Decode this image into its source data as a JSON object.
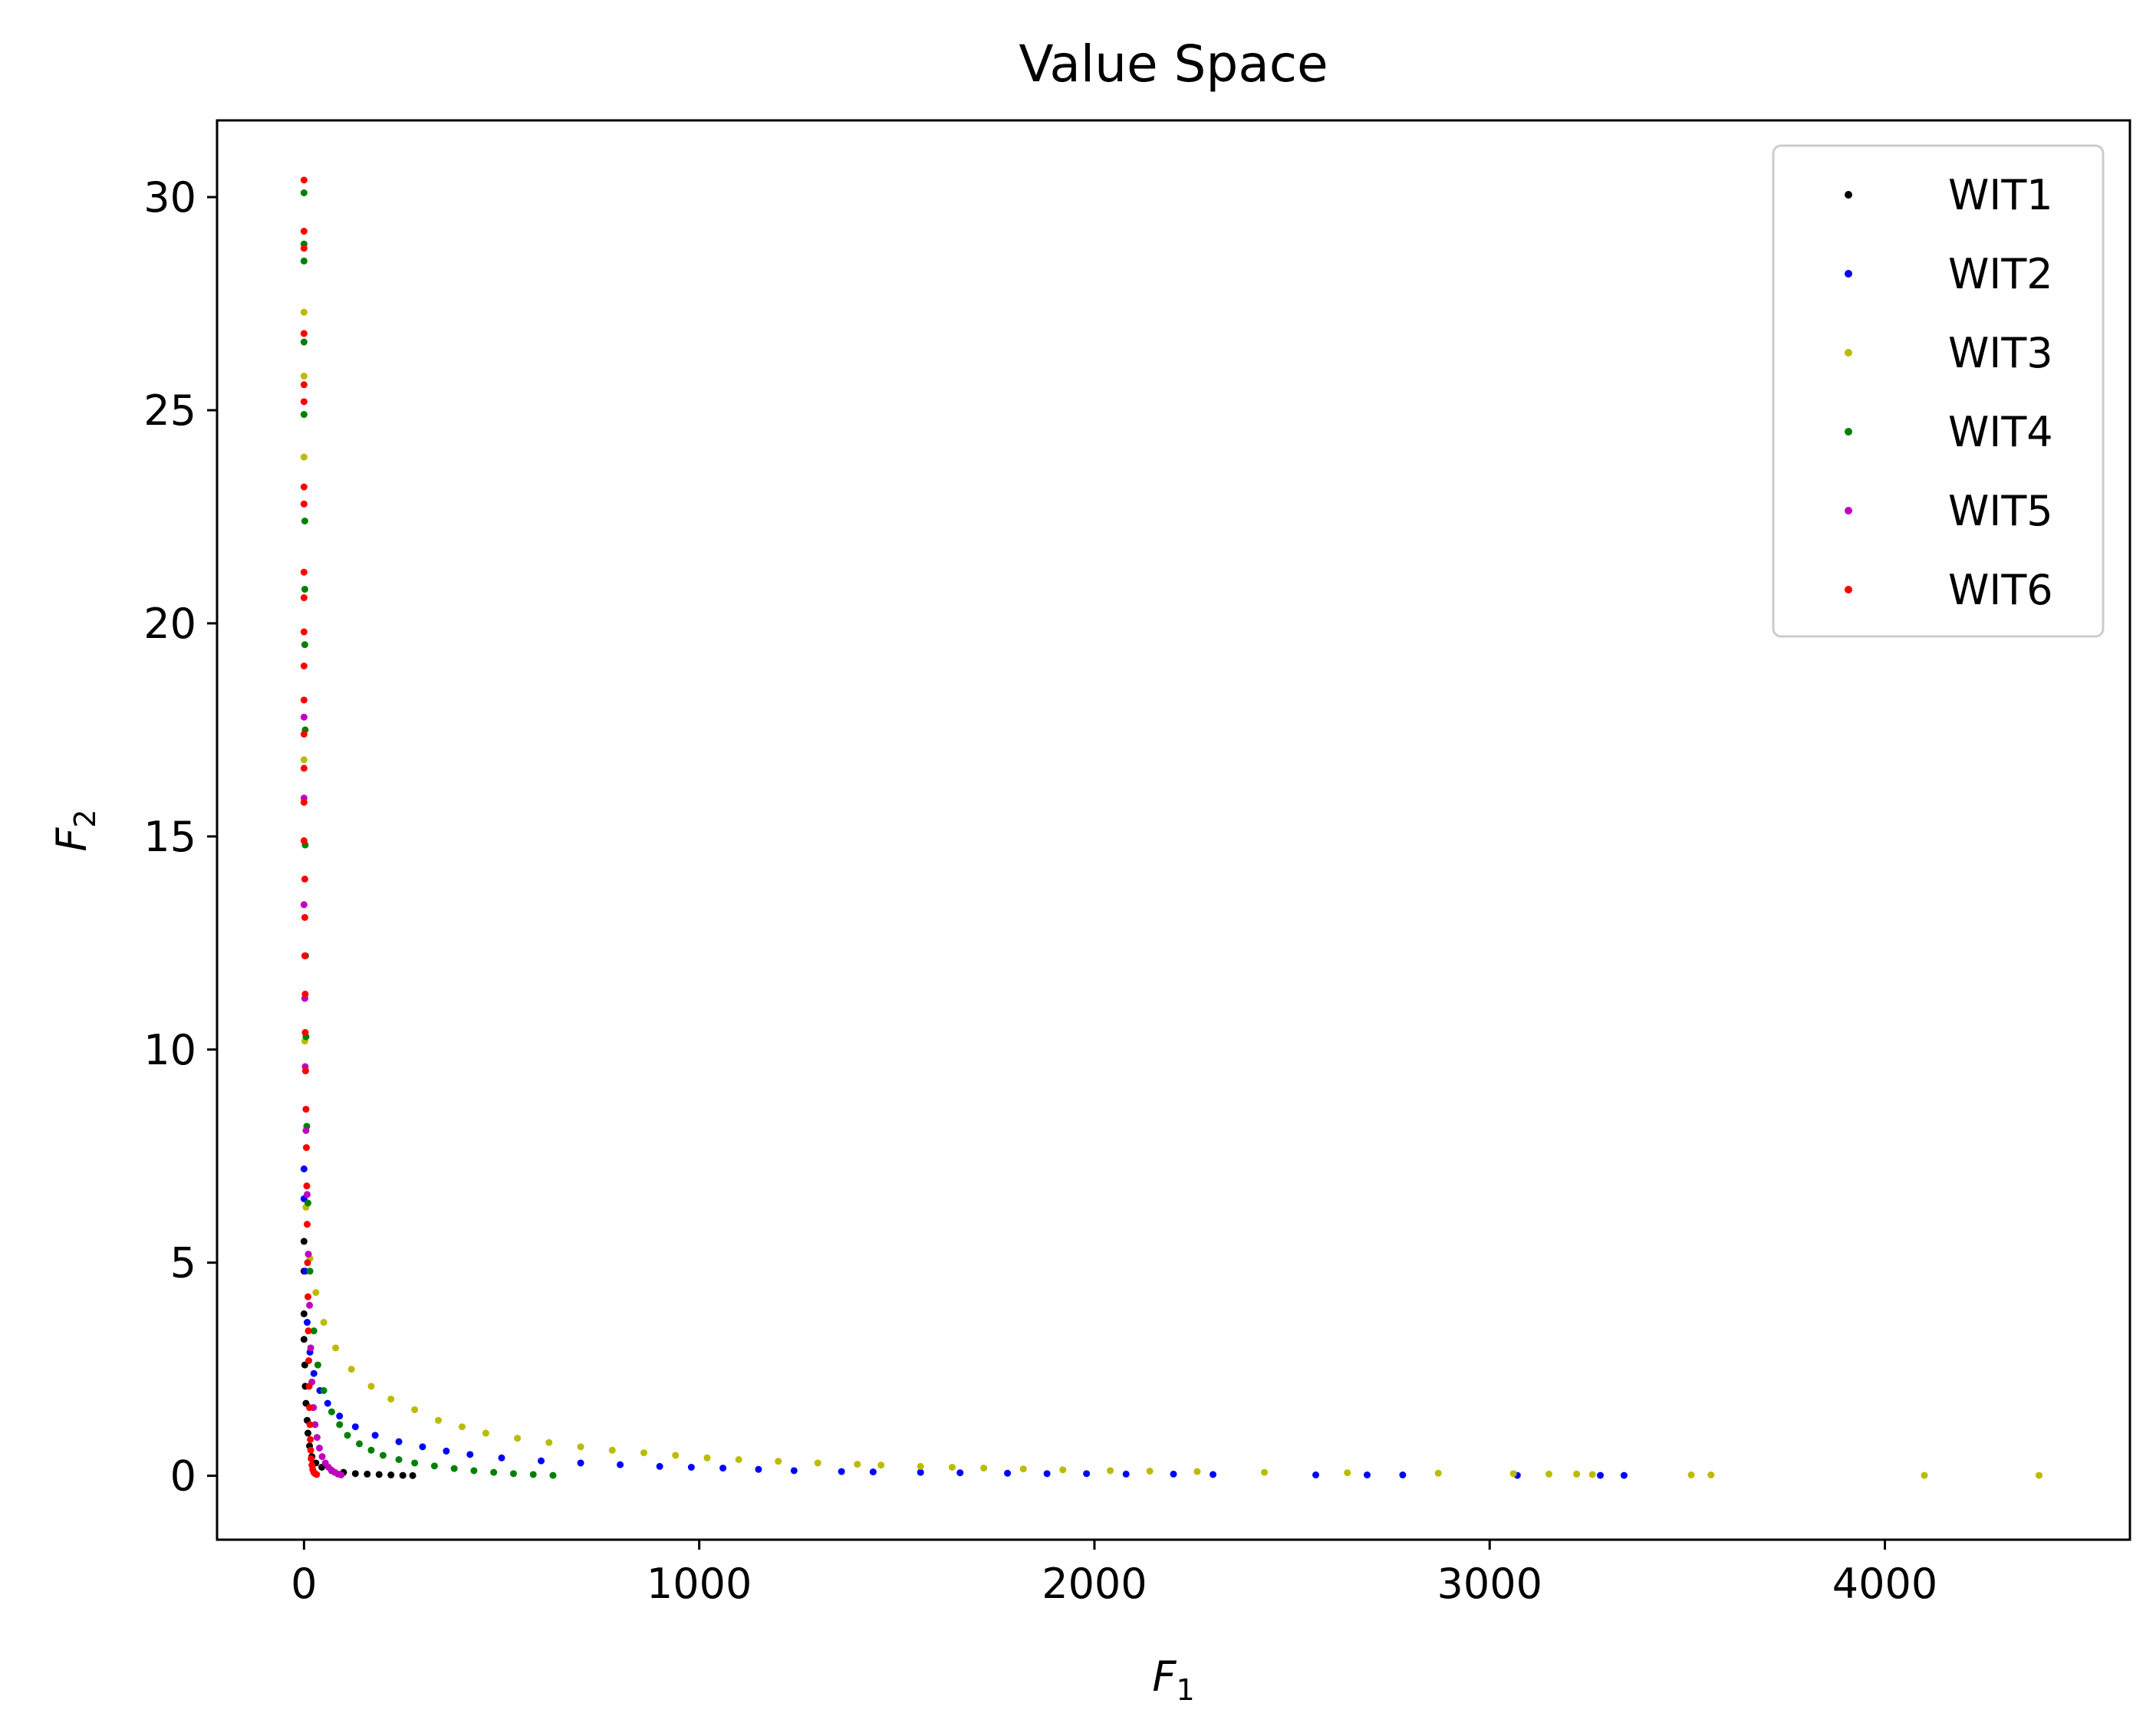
{
  "chart_data": {
    "type": "scatter",
    "title": "Value Space",
    "xlabel": {
      "main": "F",
      "sub": "1"
    },
    "ylabel": {
      "main": "F",
      "sub": "2"
    },
    "xlim": [
      -220,
      4620
    ],
    "ylim": [
      -1.5,
      31.8
    ],
    "x_ticks": [
      0,
      1000,
      2000,
      3000,
      4000
    ],
    "x_tick_labels": [
      "0",
      "1000",
      "2000",
      "3000",
      "4000"
    ],
    "y_ticks": [
      0,
      5,
      10,
      15,
      20,
      25,
      30
    ],
    "y_tick_labels": [
      "0",
      "5",
      "10",
      "15",
      "20",
      "25",
      "30"
    ],
    "grid": false,
    "legend_position": "top-right",
    "series": [
      {
        "name": "WIT1",
        "color": "#000000",
        "points": [
          [
            0,
            5.5
          ],
          [
            0,
            4.8
          ],
          [
            0,
            3.8
          ],
          [
            0,
            3.2
          ],
          [
            2,
            2.6
          ],
          [
            3,
            2.1
          ],
          [
            5,
            1.7
          ],
          [
            8,
            1.3
          ],
          [
            10,
            1.0
          ],
          [
            14,
            0.7
          ],
          [
            20,
            0.45
          ],
          [
            30,
            0.3
          ],
          [
            45,
            0.2
          ],
          [
            70,
            0.12
          ],
          [
            100,
            0.08
          ],
          [
            130,
            0.05
          ],
          [
            160,
            0.04
          ],
          [
            190,
            0.03
          ],
          [
            220,
            0.02
          ],
          [
            250,
            0.01
          ],
          [
            275,
            0.005
          ]
        ]
      },
      {
        "name": "WIT2",
        "color": "#0000ff",
        "points": [
          [
            0,
            7.2
          ],
          [
            0,
            6.5
          ],
          [
            3,
            4.8
          ],
          [
            8,
            3.6
          ],
          [
            15,
            2.9
          ],
          [
            25,
            2.4
          ],
          [
            40,
            2.0
          ],
          [
            60,
            1.7
          ],
          [
            90,
            1.4
          ],
          [
            130,
            1.15
          ],
          [
            180,
            0.95
          ],
          [
            240,
            0.8
          ],
          [
            300,
            0.68
          ],
          [
            360,
            0.58
          ],
          [
            420,
            0.5
          ],
          [
            500,
            0.42
          ],
          [
            600,
            0.35
          ],
          [
            700,
            0.3
          ],
          [
            800,
            0.26
          ],
          [
            900,
            0.22
          ],
          [
            980,
            0.2
          ],
          [
            1060,
            0.18
          ],
          [
            1150,
            0.15
          ],
          [
            1240,
            0.12
          ],
          [
            1360,
            0.1
          ],
          [
            1440,
            0.09
          ],
          [
            1560,
            0.08
          ],
          [
            1660,
            0.07
          ],
          [
            1780,
            0.06
          ],
          [
            1880,
            0.05
          ],
          [
            1980,
            0.05
          ],
          [
            2080,
            0.04
          ],
          [
            2200,
            0.04
          ],
          [
            2300,
            0.03
          ],
          [
            2560,
            0.02
          ],
          [
            2690,
            0.02
          ],
          [
            2780,
            0.02
          ],
          [
            3070,
            0.01
          ],
          [
            3280,
            0.01
          ],
          [
            3340,
            0.01
          ]
        ]
      },
      {
        "name": "WIT3",
        "color": "#bbbb00",
        "points": [
          [
            0,
            27.3
          ],
          [
            0,
            25.8
          ],
          [
            0,
            23.9
          ],
          [
            0,
            16.8
          ],
          [
            2,
            10.2
          ],
          [
            5,
            6.3
          ],
          [
            15,
            5.1
          ],
          [
            30,
            4.3
          ],
          [
            50,
            3.6
          ],
          [
            80,
            3.0
          ],
          [
            120,
            2.5
          ],
          [
            170,
            2.1
          ],
          [
            220,
            1.8
          ],
          [
            280,
            1.55
          ],
          [
            340,
            1.3
          ],
          [
            400,
            1.15
          ],
          [
            460,
            1.0
          ],
          [
            540,
            0.88
          ],
          [
            620,
            0.78
          ],
          [
            700,
            0.68
          ],
          [
            780,
            0.6
          ],
          [
            860,
            0.54
          ],
          [
            940,
            0.48
          ],
          [
            1020,
            0.42
          ],
          [
            1100,
            0.38
          ],
          [
            1200,
            0.34
          ],
          [
            1300,
            0.3
          ],
          [
            1400,
            0.27
          ],
          [
            1460,
            0.25
          ],
          [
            1560,
            0.22
          ],
          [
            1640,
            0.2
          ],
          [
            1720,
            0.18
          ],
          [
            1820,
            0.16
          ],
          [
            1920,
            0.14
          ],
          [
            2040,
            0.12
          ],
          [
            2140,
            0.11
          ],
          [
            2260,
            0.1
          ],
          [
            2430,
            0.08
          ],
          [
            2640,
            0.07
          ],
          [
            2870,
            0.06
          ],
          [
            3060,
            0.05
          ],
          [
            3150,
            0.04
          ],
          [
            3220,
            0.04
          ],
          [
            3260,
            0.03
          ],
          [
            3510,
            0.02
          ],
          [
            3560,
            0.02
          ],
          [
            4100,
            0.01
          ],
          [
            4390,
            0.01
          ]
        ]
      },
      {
        "name": "WIT4",
        "color": "#008000",
        "points": [
          [
            0,
            30.1
          ],
          [
            0,
            28.9
          ],
          [
            0,
            28.5
          ],
          [
            0,
            26.6
          ],
          [
            0,
            24.9
          ],
          [
            2,
            22.4
          ],
          [
            2,
            20.8
          ],
          [
            2,
            19.5
          ],
          [
            3,
            17.5
          ],
          [
            3,
            14.8
          ],
          [
            4,
            12.2
          ],
          [
            5,
            10.3
          ],
          [
            7,
            8.2
          ],
          [
            10,
            6.4
          ],
          [
            15,
            4.8
          ],
          [
            25,
            3.4
          ],
          [
            35,
            2.6
          ],
          [
            50,
            2.0
          ],
          [
            70,
            1.5
          ],
          [
            90,
            1.2
          ],
          [
            110,
            0.95
          ],
          [
            140,
            0.75
          ],
          [
            170,
            0.6
          ],
          [
            200,
            0.48
          ],
          [
            240,
            0.38
          ],
          [
            280,
            0.3
          ],
          [
            330,
            0.23
          ],
          [
            380,
            0.17
          ],
          [
            430,
            0.12
          ],
          [
            480,
            0.08
          ],
          [
            530,
            0.05
          ],
          [
            580,
            0.03
          ],
          [
            630,
            0.01
          ]
        ]
      },
      {
        "name": "WIT5",
        "color": "#c000c0",
        "points": [
          [
            0,
            17.8
          ],
          [
            0,
            15.9
          ],
          [
            0,
            13.4
          ],
          [
            2,
            11.2
          ],
          [
            3,
            9.6
          ],
          [
            5,
            8.1
          ],
          [
            8,
            6.6
          ],
          [
            11,
            5.2
          ],
          [
            14,
            4.0
          ],
          [
            17,
            3.0
          ],
          [
            20,
            2.2
          ],
          [
            24,
            1.6
          ],
          [
            28,
            1.2
          ],
          [
            33,
            0.9
          ],
          [
            39,
            0.65
          ],
          [
            46,
            0.45
          ],
          [
            54,
            0.3
          ],
          [
            62,
            0.2
          ],
          [
            70,
            0.13
          ],
          [
            78,
            0.08
          ],
          [
            86,
            0.04
          ],
          [
            94,
            0.02
          ]
        ]
      },
      {
        "name": "WIT6",
        "color": "#ff0000",
        "points": [
          [
            0,
            30.4
          ],
          [
            0,
            29.2
          ],
          [
            0,
            28.8
          ],
          [
            0,
            26.8
          ],
          [
            0,
            25.6
          ],
          [
            0,
            25.2
          ],
          [
            0,
            23.2
          ],
          [
            0,
            22.8
          ],
          [
            0,
            21.2
          ],
          [
            0,
            20.6
          ],
          [
            0,
            19.8
          ],
          [
            0,
            19.0
          ],
          [
            0,
            18.2
          ],
          [
            0,
            17.4
          ],
          [
            0,
            16.6
          ],
          [
            0,
            15.8
          ],
          [
            0,
            14.9
          ],
          [
            2,
            14.0
          ],
          [
            2,
            13.1
          ],
          [
            2,
            12.2
          ],
          [
            3,
            11.3
          ],
          [
            3,
            10.4
          ],
          [
            4,
            9.5
          ],
          [
            5,
            8.6
          ],
          [
            6,
            7.7
          ],
          [
            7,
            6.8
          ],
          [
            8,
            5.9
          ],
          [
            9,
            5.0
          ],
          [
            10,
            4.2
          ],
          [
            11,
            3.4
          ],
          [
            12,
            2.7
          ],
          [
            13,
            2.1
          ],
          [
            14,
            1.6
          ],
          [
            15,
            1.2
          ],
          [
            16,
            0.85
          ],
          [
            17,
            0.6
          ],
          [
            18,
            0.4
          ],
          [
            20,
            0.25
          ],
          [
            22,
            0.15
          ],
          [
            25,
            0.08
          ],
          [
            28,
            0.05
          ],
          [
            32,
            0.03
          ]
        ]
      }
    ]
  }
}
